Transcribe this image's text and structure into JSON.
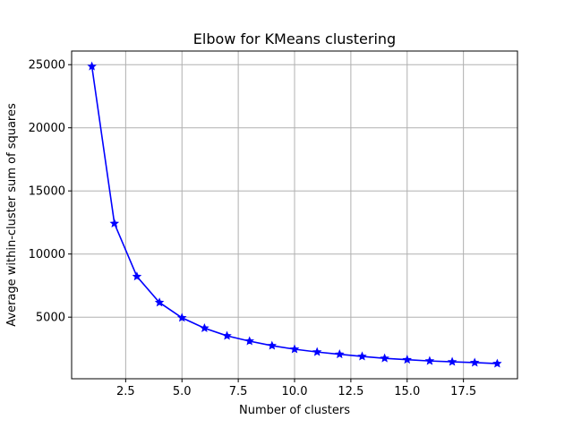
{
  "chart_data": {
    "type": "line",
    "title": "Elbow for KMeans clustering",
    "xlabel": "Number of clusters",
    "ylabel": "Average within-cluster sum of squares",
    "xlim": [
      0.1,
      19.9
    ],
    "ylim": [
      120,
      26080
    ],
    "xticks": [
      2.5,
      5.0,
      7.5,
      10.0,
      12.5,
      15.0,
      17.5
    ],
    "xtick_labels": [
      "2.5",
      "5.0",
      "7.5",
      "10.0",
      "12.5",
      "15.0",
      "17.5"
    ],
    "yticks": [
      5000,
      10000,
      15000,
      20000,
      25000
    ],
    "ytick_labels": [
      "5000",
      "10000",
      "15000",
      "20000",
      "25000"
    ],
    "grid": true,
    "marker": "star",
    "color": "#0000ff",
    "x": [
      1,
      2,
      3,
      4,
      5,
      6,
      7,
      8,
      9,
      10,
      11,
      12,
      13,
      14,
      15,
      16,
      17,
      18,
      19
    ],
    "values": [
      24860,
      12420,
      8220,
      6160,
      4950,
      4130,
      3520,
      3100,
      2740,
      2460,
      2240,
      2060,
      1890,
      1740,
      1630,
      1530,
      1460,
      1400,
      1320
    ]
  }
}
